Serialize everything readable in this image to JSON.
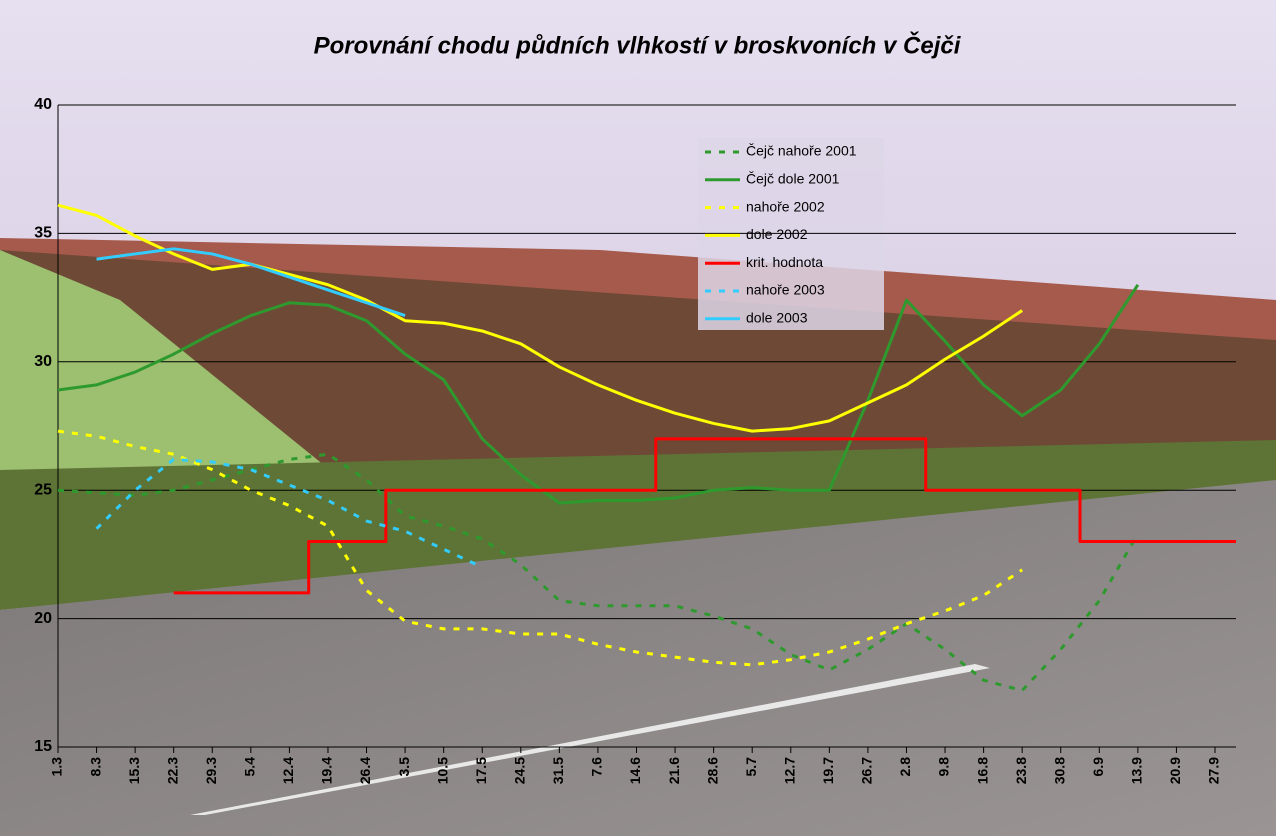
{
  "chart_data": {
    "type": "line",
    "title": "Porovnání chodu půdních vlhkostí v broskvoních v Čejči",
    "categories": [
      "1.3",
      "8.3",
      "15.3",
      "22.3",
      "29.3",
      "5.4",
      "12.4",
      "19.4",
      "26.4",
      "3.5",
      "10.5",
      "17.5",
      "24.5",
      "31.5",
      "7.6",
      "14.6",
      "21.6",
      "28.6",
      "5.7",
      "12.7",
      "19.7",
      "26.7",
      "2.8",
      "9.8",
      "16.8",
      "23.8",
      "30.8",
      "6.9",
      "13.9",
      "20.9",
      "27.9"
    ],
    "ylim": [
      15,
      40
    ],
    "yticks": [
      15,
      20,
      25,
      30,
      35,
      40
    ],
    "grid": true,
    "series": [
      {
        "name": "Čejč nahoře 2001",
        "color": "#2e9a2e",
        "dashed": true,
        "values": [
          25.0,
          24.9,
          24.8,
          25.0,
          25.4,
          25.8,
          26.2,
          26.4,
          25.4,
          24.0,
          23.6,
          23.1,
          22.1,
          20.7,
          20.5,
          20.5,
          20.5,
          20.1,
          19.6,
          18.6,
          18.0,
          18.8,
          19.8,
          18.8,
          17.6,
          17.2,
          18.8,
          20.7,
          23.3,
          null,
          null
        ]
      },
      {
        "name": "Čejč dole 2001",
        "color": "#2e9a2e",
        "dashed": false,
        "values": [
          28.9,
          29.1,
          29.6,
          30.3,
          31.1,
          31.8,
          32.3,
          32.2,
          31.6,
          30.3,
          29.3,
          27.0,
          25.6,
          24.5,
          24.6,
          24.6,
          24.7,
          25.0,
          25.1,
          25.0,
          25.0,
          28.5,
          32.4,
          30.8,
          29.1,
          27.9,
          28.9,
          30.7,
          33.0,
          null,
          null
        ]
      },
      {
        "name": "nahoře 2002",
        "color": "#ffff00",
        "dashed": true,
        "values": [
          27.3,
          27.1,
          26.7,
          26.4,
          25.8,
          25.0,
          24.4,
          23.6,
          21.1,
          19.9,
          19.6,
          19.6,
          19.4,
          19.4,
          19.0,
          18.7,
          18.5,
          18.3,
          18.2,
          18.4,
          18.7,
          19.2,
          19.8,
          20.3,
          20.9,
          21.9,
          null,
          null,
          null,
          null,
          null
        ]
      },
      {
        "name": "dole 2002",
        "color": "#ffff00",
        "dashed": false,
        "values": [
          36.1,
          35.7,
          34.9,
          34.2,
          33.6,
          33.8,
          33.4,
          33.0,
          32.4,
          31.6,
          31.5,
          31.2,
          30.7,
          29.8,
          29.1,
          28.5,
          28.0,
          27.6,
          27.3,
          27.4,
          27.7,
          28.4,
          29.1,
          30.1,
          31.0,
          32.0,
          null,
          null,
          null,
          null,
          null
        ]
      },
      {
        "name": "krit. hodnota",
        "color": "#ff0000",
        "dashed": false,
        "step": true,
        "values": [
          null,
          null,
          null,
          21,
          21,
          21,
          21,
          23,
          23,
          25,
          25,
          25,
          25,
          25,
          25,
          25,
          27,
          27,
          27,
          27,
          27,
          27,
          27,
          25,
          25,
          25,
          25,
          23,
          23,
          23,
          23
        ]
      },
      {
        "name": "nahoře 2003",
        "color": "#33ccff",
        "dashed": true,
        "values": [
          null,
          23.5,
          25.0,
          26.2,
          26.1,
          25.8,
          25.2,
          24.6,
          23.8,
          23.4,
          22.7,
          22.0,
          null,
          null,
          null,
          null,
          null,
          null,
          null,
          null,
          null,
          null,
          null,
          null,
          null,
          null,
          null,
          null,
          null,
          null,
          null
        ]
      },
      {
        "name": "dole 2003",
        "color": "#33ccff",
        "dashed": false,
        "values": [
          null,
          34.0,
          34.2,
          34.4,
          34.2,
          33.8,
          33.3,
          32.8,
          32.3,
          31.8,
          null,
          null,
          null,
          null,
          null,
          null,
          null,
          null,
          null,
          null,
          null,
          null,
          null,
          null,
          null,
          null,
          null,
          null,
          null,
          null,
          null
        ]
      }
    ]
  }
}
